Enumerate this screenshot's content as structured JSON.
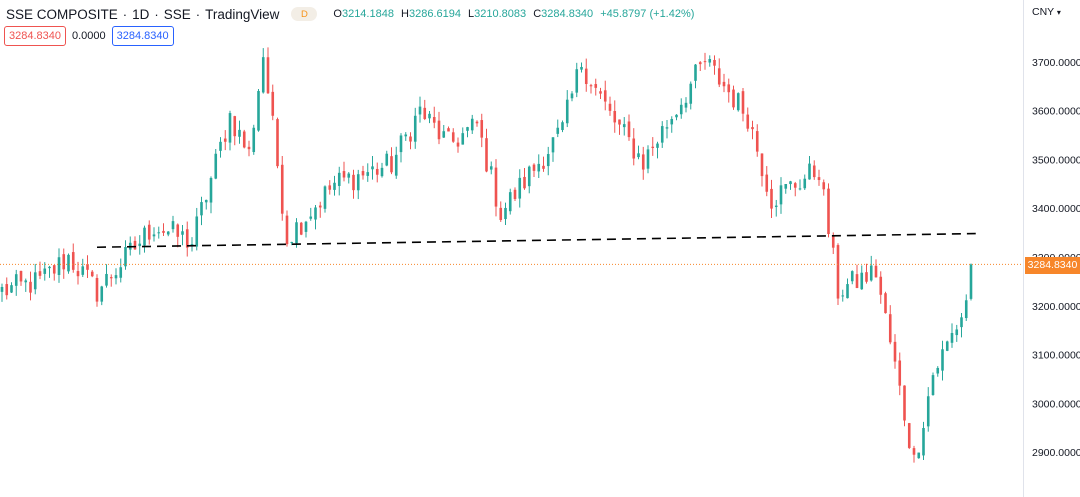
{
  "header": {
    "symbol": "SSE COMPOSITE",
    "interval": "1D",
    "exchange": "SSE",
    "source": "TradingView",
    "separator": "·",
    "badge": "D",
    "ohlc": {
      "o_label": "O",
      "o": "3214.1848",
      "h_label": "H",
      "h": "3286.6194",
      "l_label": "L",
      "l": "3210.8083",
      "c_label": "C",
      "c": "3284.8340",
      "change": "+45.8797 (+1.42%)"
    }
  },
  "indicators": {
    "box1": "3284.8340",
    "middle": "0.0000",
    "box2": "3284.8340"
  },
  "price_scale": {
    "currency": "CNY",
    "current_price": "3284.8340",
    "ticks": [
      "3700.0000",
      "3600.0000",
      "3500.0000",
      "3400.0000",
      "3300.0000",
      "3200.0000",
      "3100.0000",
      "3000.0000",
      "2900.0000"
    ]
  },
  "colors": {
    "up": "#26a69a",
    "down": "#ef5350",
    "price_line": "#f7862a",
    "trendline": "#000000"
  },
  "chart_data": {
    "type": "candlestick",
    "title": "SSE COMPOSITE · 1D · SSE",
    "ylabel": "CNY",
    "ylim": [
      2870,
      3740
    ],
    "last": {
      "open": 3214.1848,
      "high": 3286.6194,
      "low": 3210.8083,
      "close": 3284.834,
      "change": 45.8797,
      "change_pct": 1.42
    },
    "trendline": {
      "start": {
        "bar": 20,
        "value": 3320
      },
      "end": {
        "bar": 205,
        "value": 3348
      }
    },
    "candle_count": 205,
    "close_path": [
      [
        0,
        3230
      ],
      [
        8,
        3250
      ],
      [
        14,
        3300
      ],
      [
        20,
        3230
      ],
      [
        32,
        3365
      ],
      [
        40,
        3330
      ],
      [
        48,
        3590
      ],
      [
        52,
        3510
      ],
      [
        55,
        3715
      ],
      [
        60,
        3340
      ],
      [
        70,
        3450
      ],
      [
        82,
        3490
      ],
      [
        88,
        3600
      ],
      [
        94,
        3530
      ],
      [
        100,
        3570
      ],
      [
        105,
        3390
      ],
      [
        118,
        3560
      ],
      [
        122,
        3700
      ],
      [
        128,
        3590
      ],
      [
        135,
        3495
      ],
      [
        148,
        3700
      ],
      [
        157,
        3590
      ],
      [
        162,
        3420
      ],
      [
        172,
        3480
      ],
      [
        176,
        3230
      ],
      [
        184,
        3270
      ],
      [
        192,
        2880
      ],
      [
        196,
        3060
      ],
      [
        202,
        3180
      ],
      [
        205,
        3285
      ]
    ]
  }
}
